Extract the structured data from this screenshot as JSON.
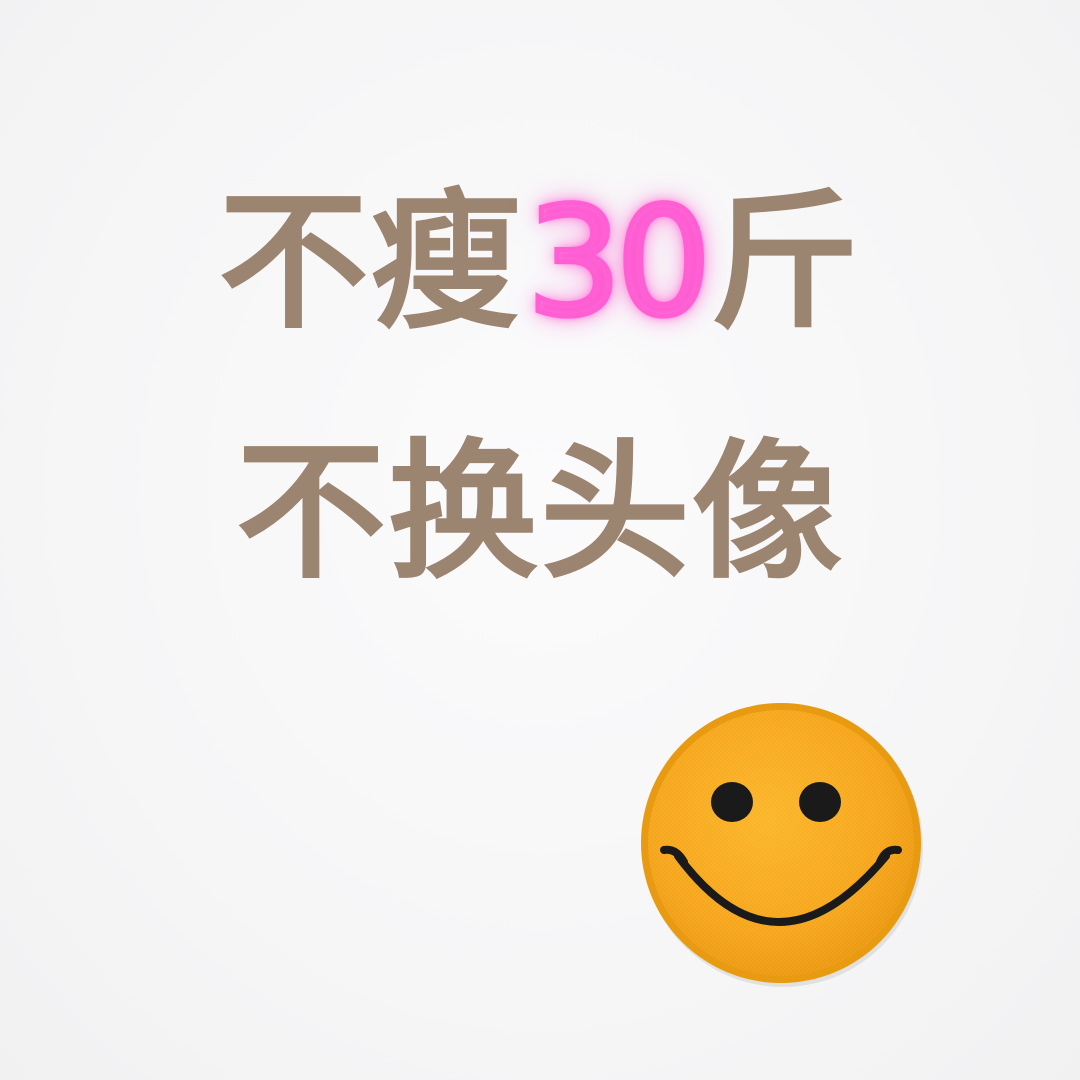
{
  "headline": {
    "line1_before": "不瘦",
    "line1_highlight": "30",
    "line1_after": "斤",
    "line2": "不换头像"
  },
  "colors": {
    "text": "#9b8470",
    "neon": "#ff5fd2",
    "smiley_face": "#f7a81b",
    "smiley_rim": "#e69a10",
    "smiley_features": "#1a1a1a"
  },
  "icons": {
    "smiley": "smiley-face-patch-icon"
  }
}
